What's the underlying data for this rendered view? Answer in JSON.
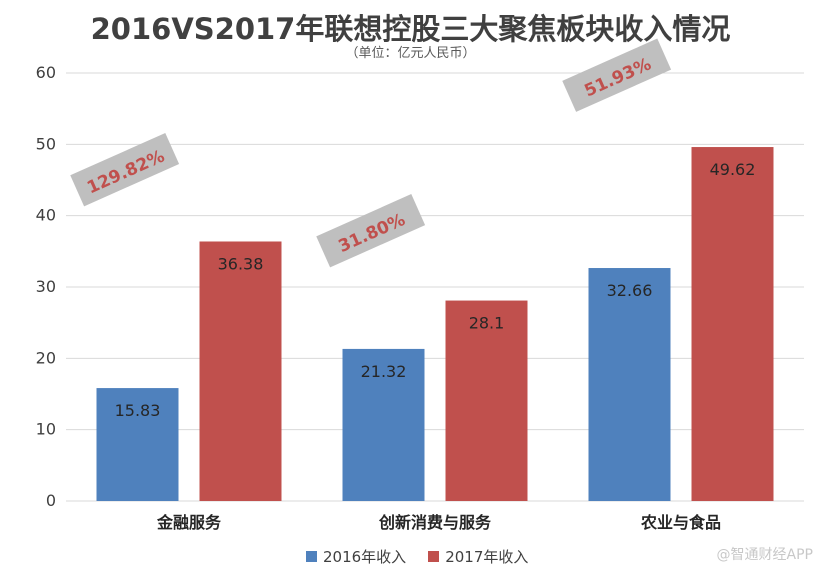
{
  "title": "2016VS2017年联想控股三大聚焦板块收入情况",
  "subtitle": "（单位：亿元人民币）",
  "watermark": "@智通财经APP",
  "colors": {
    "series_2016": "#4f81bd",
    "series_2017": "#c0504d",
    "growth_box": "#bfbfbf",
    "growth_text": "#c0504d",
    "gridline": "#d9d9d9"
  },
  "chart_data": {
    "type": "bar",
    "categories": [
      "金融服务",
      "创新消费与服务",
      "农业与食品"
    ],
    "series": [
      {
        "name": "2016年收入",
        "values": [
          15.83,
          21.32,
          32.66
        ],
        "labels": [
          "15.83",
          "21.32",
          "32.66"
        ]
      },
      {
        "name": "2017年收入",
        "values": [
          36.38,
          28.1,
          49.62
        ],
        "labels": [
          "36.38",
          "28.1",
          "49.62"
        ]
      }
    ],
    "growth_labels": [
      "129.82%",
      "31.80%",
      "51.93%"
    ],
    "ylim": [
      0,
      60
    ],
    "yticks": [
      0,
      10,
      20,
      30,
      40,
      50,
      60
    ],
    "grid": true,
    "legend_position": "bottom"
  }
}
